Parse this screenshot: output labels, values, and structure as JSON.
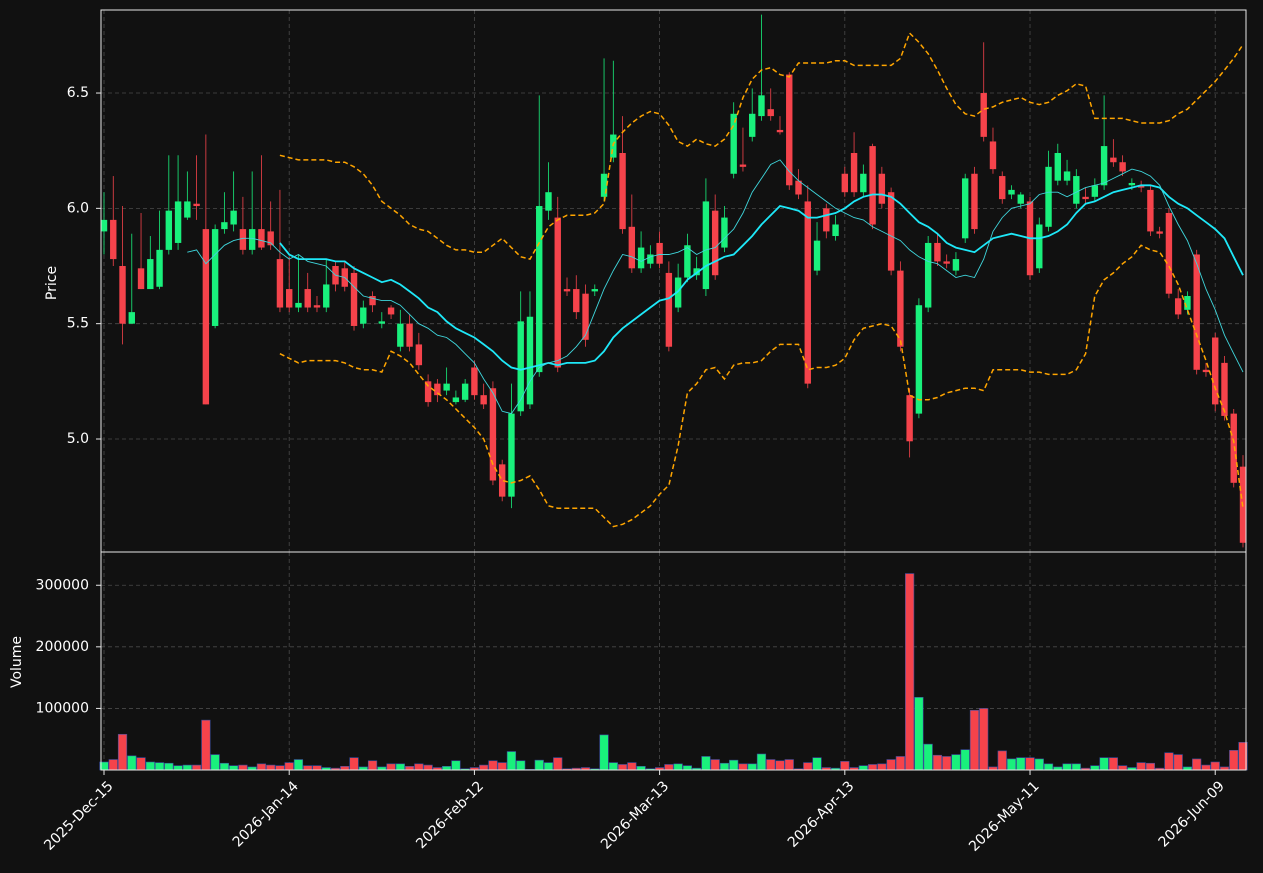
{
  "chart_data": {
    "type": "candlestick",
    "y_label": "Price",
    "volume_label": "Volume",
    "categories": [
      "2025-Dec-15",
      null,
      null,
      null,
      null,
      null,
      null,
      null,
      null,
      null,
      null,
      null,
      null,
      null,
      null,
      null,
      null,
      null,
      null,
      null,
      "2026-Jan-14",
      null,
      null,
      null,
      null,
      null,
      null,
      null,
      null,
      null,
      null,
      null,
      null,
      null,
      null,
      null,
      null,
      null,
      null,
      null,
      "2026-Feb-12",
      null,
      null,
      null,
      null,
      null,
      null,
      null,
      null,
      null,
      null,
      null,
      null,
      null,
      null,
      null,
      null,
      null,
      null,
      null,
      "2026-Mar-13",
      null,
      null,
      null,
      null,
      null,
      null,
      null,
      null,
      null,
      null,
      null,
      null,
      null,
      null,
      null,
      null,
      null,
      null,
      null,
      "2026-Apr-13",
      null,
      null,
      null,
      null,
      null,
      null,
      null,
      null,
      null,
      null,
      null,
      null,
      null,
      null,
      null,
      null,
      null,
      null,
      null,
      "2026-May-11",
      null,
      null,
      null,
      null,
      null,
      null,
      null,
      null,
      null,
      null,
      null,
      null,
      null,
      null,
      null,
      null,
      null,
      null,
      null,
      "2026-Jun-09",
      null,
      null,
      null
    ],
    "open": [
      5.9,
      5.95,
      5.75,
      5.5,
      5.74,
      5.65,
      5.66,
      5.82,
      5.85,
      5.96,
      6.02,
      5.91,
      5.49,
      5.91,
      5.93,
      5.91,
      5.82,
      5.91,
      5.9,
      5.78,
      5.65,
      5.57,
      5.65,
      5.58,
      5.57,
      5.75,
      5.74,
      5.72,
      5.5,
      5.62,
      5.5,
      5.57,
      5.4,
      5.5,
      5.41,
      5.25,
      5.24,
      5.21,
      5.16,
      5.17,
      5.31,
      5.19,
      5.22,
      4.89,
      4.75,
      5.12,
      5.15,
      5.29,
      5.99,
      5.96,
      5.65,
      5.65,
      5.63,
      5.64,
      6.05,
      6.22,
      6.24,
      5.92,
      5.74,
      5.76,
      5.85,
      5.72,
      5.57,
      5.7,
      5.71,
      5.65,
      5.99,
      5.83,
      6.15,
      6.19,
      6.31,
      6.4,
      6.43,
      6.34,
      6.58,
      6.12,
      6.03,
      5.73,
      6.0,
      5.88,
      6.15,
      6.24,
      6.07,
      6.27,
      6.15,
      6.07,
      5.73,
      5.19,
      5.11,
      5.57,
      5.85,
      5.77,
      5.73,
      5.87,
      6.15,
      6.5,
      6.29,
      6.14,
      6.06,
      6.02,
      6.03,
      5.74,
      5.92,
      6.12,
      6.12,
      6.02,
      6.05,
      6.05,
      6.1,
      6.22,
      6.2,
      6.1,
      6.1,
      6.08,
      5.9,
      5.98,
      5.61,
      5.56,
      5.8,
      5.3,
      5.44,
      5.33,
      5.11,
      4.88
    ],
    "high": [
      6.07,
      6.14,
      6.01,
      5.89,
      5.98,
      5.88,
      5.99,
      6.23,
      6.23,
      6.16,
      6.23,
      6.32,
      5.93,
      6.07,
      6.16,
      6.05,
      6.16,
      6.23,
      6.03,
      6.08,
      5.79,
      5.8,
      5.72,
      5.62,
      5.78,
      5.77,
      5.77,
      5.75,
      5.6,
      5.64,
      5.55,
      5.58,
      5.56,
      5.54,
      5.46,
      5.28,
      5.26,
      5.31,
      5.21,
      5.26,
      5.34,
      5.24,
      5.25,
      4.91,
      5.24,
      5.64,
      5.64,
      6.49,
      6.2,
      6.05,
      5.7,
      5.71,
      5.67,
      5.67,
      6.65,
      6.64,
      6.4,
      6.06,
      5.9,
      5.84,
      5.9,
      5.77,
      5.76,
      5.89,
      5.79,
      6.13,
      6.06,
      6.01,
      6.46,
      6.35,
      6.52,
      6.84,
      6.52,
      6.4,
      6.59,
      6.17,
      6.1,
      5.94,
      6.02,
      5.97,
      6.18,
      6.33,
      6.19,
      6.28,
      6.18,
      6.09,
      5.77,
      5.22,
      5.61,
      5.88,
      5.89,
      5.8,
      5.81,
      6.15,
      6.18,
      6.72,
      6.35,
      6.16,
      6.1,
      6.07,
      6.05,
      5.96,
      6.25,
      6.28,
      6.21,
      6.17,
      6.09,
      6.13,
      6.49,
      6.3,
      6.23,
      6.13,
      6.12,
      6.1,
      5.92,
      6.0,
      5.65,
      5.64,
      5.82,
      5.33,
      5.46,
      5.36,
      5.13,
      4.93
    ],
    "low": [
      5.8,
      5.75,
      5.41,
      5.5,
      5.65,
      5.65,
      5.65,
      5.8,
      5.82,
      5.95,
      5.95,
      5.15,
      5.48,
      5.89,
      5.9,
      5.8,
      5.8,
      5.82,
      5.82,
      5.55,
      5.55,
      5.55,
      5.55,
      5.55,
      5.55,
      5.64,
      5.64,
      5.47,
      5.48,
      5.55,
      5.48,
      5.52,
      5.38,
      5.38,
      5.3,
      5.14,
      5.16,
      5.19,
      5.15,
      5.16,
      5.17,
      5.13,
      4.8,
      4.73,
      4.7,
      5.1,
      5.13,
      5.27,
      5.95,
      5.29,
      5.62,
      5.52,
      5.4,
      5.62,
      6.03,
      6.2,
      5.89,
      5.72,
      5.72,
      5.74,
      5.74,
      5.38,
      5.55,
      5.68,
      5.69,
      5.62,
      5.69,
      5.81,
      6.13,
      6.16,
      6.29,
      6.38,
      6.38,
      6.32,
      6.08,
      6.04,
      5.22,
      5.71,
      5.87,
      5.86,
      6.05,
      6.05,
      6.05,
      5.91,
      6.0,
      5.71,
      5.38,
      4.92,
      5.09,
      5.55,
      5.75,
      5.74,
      5.71,
      5.85,
      5.89,
      6.29,
      6.15,
      6.02,
      6.04,
      6.0,
      5.69,
      5.72,
      5.9,
      6.1,
      6.1,
      6.0,
      6.02,
      6.03,
      6.08,
      6.18,
      6.14,
      6.08,
      6.07,
      5.88,
      5.87,
      5.61,
      5.52,
      5.54,
      5.28,
      5.27,
      5.12,
      5.08,
      4.79,
      4.53
    ],
    "close": [
      5.95,
      5.78,
      5.5,
      5.55,
      5.65,
      5.78,
      5.82,
      5.99,
      6.03,
      6.03,
      6.01,
      5.15,
      5.91,
      5.94,
      5.99,
      5.82,
      5.91,
      5.83,
      5.84,
      5.57,
      5.57,
      5.59,
      5.57,
      5.57,
      5.67,
      5.67,
      5.66,
      5.49,
      5.57,
      5.58,
      5.51,
      5.54,
      5.5,
      5.4,
      5.32,
      5.16,
      5.19,
      5.24,
      5.18,
      5.24,
      5.19,
      5.15,
      4.82,
      4.75,
      5.11,
      5.51,
      5.53,
      6.01,
      6.07,
      5.31,
      5.64,
      5.55,
      5.43,
      5.65,
      6.15,
      6.32,
      5.91,
      5.74,
      5.83,
      5.8,
      5.76,
      5.4,
      5.7,
      5.84,
      5.74,
      6.03,
      5.71,
      5.96,
      6.41,
      6.18,
      6.41,
      6.49,
      6.4,
      6.33,
      6.1,
      6.06,
      5.24,
      5.86,
      5.9,
      5.93,
      6.07,
      6.07,
      6.15,
      5.93,
      6.02,
      5.73,
      5.4,
      4.99,
      5.58,
      5.85,
      5.77,
      5.76,
      5.78,
      6.13,
      5.91,
      6.31,
      6.17,
      6.04,
      6.08,
      6.06,
      5.71,
      5.93,
      6.18,
      6.24,
      6.16,
      6.14,
      6.04,
      6.1,
      6.27,
      6.2,
      6.16,
      6.11,
      6.09,
      5.9,
      5.89,
      5.63,
      5.54,
      5.62,
      5.3,
      5.29,
      5.15,
      5.1,
      4.81,
      4.55
    ],
    "volume": [
      13000,
      17000,
      58000,
      23000,
      20000,
      13000,
      12000,
      11000,
      7000,
      8000,
      8000,
      81000,
      25000,
      11000,
      7000,
      8000,
      5000,
      10000,
      8000,
      7000,
      12000,
      17000,
      7000,
      7000,
      4000,
      3000,
      6000,
      20000,
      5000,
      15000,
      5000,
      10000,
      10000,
      6000,
      10000,
      8000,
      4000,
      6000,
      15000,
      2000,
      4000,
      8000,
      15000,
      12000,
      30000,
      15000,
      1000,
      16000,
      12000,
      20000,
      2000,
      3000,
      4000,
      2000,
      57000,
      12000,
      9000,
      12000,
      6000,
      2000,
      4000,
      9000,
      10000,
      7000,
      3000,
      22000,
      17000,
      11000,
      16000,
      10000,
      10000,
      26000,
      17000,
      15000,
      17000,
      2000,
      12000,
      20000,
      4000,
      3000,
      14000,
      4000,
      7000,
      9000,
      10000,
      17000,
      22000,
      319000,
      118000,
      42000,
      24000,
      22000,
      25000,
      33000,
      97000,
      100000,
      5000,
      31000,
      18000,
      20000,
      20000,
      18000,
      10000,
      5000,
      10000,
      10000,
      3000,
      7000,
      20000,
      20000,
      7000,
      4000,
      12000,
      11000,
      3000,
      28000,
      25000,
      5000,
      18000,
      8000,
      13000,
      5000,
      32000,
      45000
    ],
    "up_color": "#19f07c",
    "down_color": "#f5434b",
    "lines": [
      {
        "color": "#ffa500",
        "dashed": true,
        "linewidth": 1.5,
        "values": [
          null,
          null,
          null,
          null,
          null,
          null,
          null,
          null,
          null,
          null,
          null,
          null,
          null,
          null,
          null,
          null,
          null,
          null,
          null,
          6.23,
          6.22,
          6.21,
          6.21,
          6.21,
          6.21,
          6.2,
          6.2,
          6.18,
          6.15,
          6.1,
          6.03,
          6.0,
          5.97,
          5.93,
          5.91,
          5.9,
          5.87,
          5.84,
          5.82,
          5.82,
          5.81,
          5.81,
          5.84,
          5.87,
          5.83,
          5.79,
          5.78,
          5.85,
          5.92,
          5.95,
          5.97,
          5.97,
          5.97,
          5.98,
          6.02,
          6.28,
          6.33,
          6.37,
          6.4,
          6.42,
          6.41,
          6.36,
          6.29,
          6.27,
          6.3,
          6.28,
          6.27,
          6.3,
          6.36,
          6.48,
          6.56,
          6.6,
          6.61,
          6.58,
          6.57,
          6.63,
          6.63,
          6.63,
          6.63,
          6.64,
          6.64,
          6.62,
          6.62,
          6.62,
          6.62,
          6.62,
          6.65,
          6.76,
          6.72,
          6.67,
          6.6,
          6.52,
          6.45,
          6.41,
          6.4,
          6.43,
          6.44,
          6.46,
          6.47,
          6.48,
          6.46,
          6.45,
          6.46,
          6.49,
          6.51,
          6.54,
          6.53,
          6.39,
          6.39,
          6.39,
          6.39,
          6.38,
          6.37,
          6.37,
          6.37,
          6.38,
          6.41,
          6.43,
          6.47,
          6.51,
          6.55,
          6.6,
          6.65,
          6.71
        ]
      },
      {
        "color": "#ffa500",
        "dashed": true,
        "linewidth": 1.5,
        "values": [
          null,
          null,
          null,
          null,
          null,
          null,
          null,
          null,
          null,
          null,
          null,
          null,
          null,
          null,
          null,
          null,
          null,
          null,
          null,
          5.37,
          5.35,
          5.33,
          5.34,
          5.34,
          5.34,
          5.34,
          5.33,
          5.31,
          5.3,
          5.3,
          5.29,
          5.38,
          5.36,
          5.33,
          5.28,
          5.23,
          5.2,
          5.17,
          5.13,
          5.09,
          5.05,
          5.0,
          4.89,
          4.82,
          4.81,
          4.82,
          4.84,
          4.78,
          4.71,
          4.7,
          4.7,
          4.7,
          4.7,
          4.7,
          4.66,
          4.62,
          4.63,
          4.65,
          4.68,
          4.71,
          4.76,
          4.8,
          4.97,
          5.2,
          5.24,
          5.3,
          5.31,
          5.26,
          5.32,
          5.33,
          5.33,
          5.34,
          5.38,
          5.41,
          5.41,
          5.41,
          5.3,
          5.31,
          5.31,
          5.32,
          5.35,
          5.43,
          5.48,
          5.49,
          5.5,
          5.49,
          5.43,
          5.19,
          5.17,
          5.17,
          5.18,
          5.2,
          5.21,
          5.22,
          5.22,
          5.21,
          5.3,
          5.3,
          5.3,
          5.3,
          5.29,
          5.29,
          5.28,
          5.28,
          5.28,
          5.3,
          5.37,
          5.62,
          5.69,
          5.72,
          5.76,
          5.79,
          5.84,
          5.82,
          5.81,
          5.75,
          5.67,
          5.56,
          5.45,
          5.34,
          5.22,
          5.12,
          4.99,
          4.7
        ]
      },
      {
        "color": "#1ee8f8",
        "dashed": false,
        "linewidth": 1.8,
        "values": [
          null,
          null,
          null,
          null,
          null,
          null,
          null,
          null,
          null,
          null,
          null,
          null,
          null,
          null,
          null,
          null,
          null,
          null,
          null,
          5.85,
          5.8,
          5.78,
          5.78,
          5.78,
          5.78,
          5.77,
          5.77,
          5.74,
          5.72,
          5.7,
          5.68,
          5.69,
          5.67,
          5.64,
          5.61,
          5.57,
          5.55,
          5.51,
          5.48,
          5.46,
          5.44,
          5.41,
          5.38,
          5.34,
          5.31,
          5.3,
          5.31,
          5.32,
          5.33,
          5.32,
          5.33,
          5.33,
          5.33,
          5.34,
          5.38,
          5.44,
          5.48,
          5.51,
          5.54,
          5.57,
          5.6,
          5.61,
          5.64,
          5.69,
          5.72,
          5.75,
          5.77,
          5.79,
          5.8,
          5.84,
          5.88,
          5.93,
          5.97,
          6.01,
          6.0,
          5.99,
          5.96,
          5.96,
          5.97,
          5.98,
          6.0,
          6.03,
          6.05,
          6.06,
          6.06,
          6.05,
          6.02,
          5.98,
          5.94,
          5.92,
          5.89,
          5.85,
          5.83,
          5.82,
          5.81,
          5.84,
          5.87,
          5.88,
          5.89,
          5.88,
          5.87,
          5.87,
          5.88,
          5.9,
          5.93,
          5.98,
          6.02,
          6.03,
          6.05,
          6.07,
          6.08,
          6.09,
          6.1,
          6.1,
          6.09,
          6.05,
          6.02,
          6.0,
          5.97,
          5.94,
          5.91,
          5.87,
          5.79,
          5.71
        ]
      },
      {
        "color": "#3fd6dc",
        "dashed": false,
        "linewidth": 0.9,
        "values": [
          null,
          null,
          null,
          null,
          null,
          null,
          null,
          null,
          null,
          5.81,
          5.82,
          5.76,
          5.8,
          5.84,
          5.86,
          5.87,
          5.87,
          5.86,
          5.85,
          5.81,
          5.78,
          5.8,
          5.77,
          5.76,
          5.75,
          5.71,
          5.7,
          5.66,
          5.62,
          5.61,
          5.6,
          5.6,
          5.58,
          5.54,
          5.5,
          5.48,
          5.45,
          5.44,
          5.41,
          5.37,
          5.33,
          5.26,
          5.2,
          5.12,
          5.11,
          5.17,
          5.25,
          5.31,
          5.33,
          5.34,
          5.36,
          5.4,
          5.45,
          5.55,
          5.65,
          5.73,
          5.8,
          5.79,
          5.77,
          5.79,
          5.8,
          5.8,
          5.81,
          5.83,
          5.8,
          5.82,
          5.83,
          5.87,
          5.91,
          5.98,
          6.07,
          6.13,
          6.19,
          6.21,
          6.16,
          6.12,
          6.09,
          6.06,
          6.03,
          6.0,
          5.98,
          5.96,
          5.95,
          5.92,
          5.9,
          5.88,
          5.86,
          5.82,
          5.79,
          5.77,
          5.76,
          5.73,
          5.7,
          5.71,
          5.7,
          5.78,
          5.9,
          5.96,
          6.0,
          6.01,
          6.02,
          6.06,
          6.07,
          6.07,
          6.05,
          6.07,
          6.09,
          6.1,
          6.11,
          6.13,
          6.15,
          6.17,
          6.16,
          6.14,
          6.1,
          6.01,
          5.93,
          5.86,
          5.76,
          5.65,
          5.56,
          5.45,
          5.37,
          5.29
        ]
      }
    ],
    "ylim": [
      4.51,
      6.86
    ],
    "yticks": [
      {
        "value": 5,
        "label": "5.0"
      },
      5.5,
      {
        "value": 6,
        "label": "6.0"
      },
      6.5
    ],
    "volume_ylim": [
      0,
      354000
    ],
    "volume_yticks": [
      100000,
      200000,
      300000
    ],
    "grid": true
  }
}
